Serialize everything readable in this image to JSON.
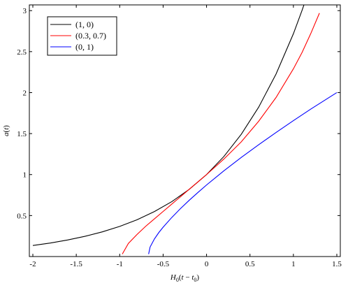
{
  "chart_data": {
    "type": "line",
    "xlabel_parts": {
      "H": "H",
      "sub0": "0",
      "open": "(",
      "t": "t",
      "minus": " − ",
      "t2": "t",
      "sub1": "0",
      "close": ")"
    },
    "ylabel_parts": {
      "a": "a",
      "open": "(",
      "t": "t",
      "close": ")"
    },
    "xlim": [
      -2,
      1.5
    ],
    "ylim": [
      0,
      3.07
    ],
    "x_ticks": [
      -2,
      -1.5,
      -1,
      -0.5,
      0,
      0.5,
      1,
      1.5
    ],
    "x_tick_labels": [
      "-2",
      "-1.5",
      "-1",
      "-0.5",
      "0",
      "0.5",
      "1",
      "1.5"
    ],
    "y_ticks": [
      0.5,
      1,
      1.5,
      2,
      2.5,
      3
    ],
    "y_tick_labels": [
      "0.5",
      "1",
      "1.5",
      "2",
      "2.5",
      "3"
    ],
    "legend_position": "top-left",
    "series": [
      {
        "name": "(1, 0)",
        "color": "#000000",
        "x": [
          -2,
          -1.8,
          -1.6,
          -1.4,
          -1.2,
          -1,
          -0.8,
          -0.6,
          -0.4,
          -0.2,
          0,
          0.2,
          0.4,
          0.6,
          0.8,
          1,
          1.1,
          1.15
        ],
        "y": [
          0.135,
          0.165,
          0.202,
          0.247,
          0.301,
          0.368,
          0.449,
          0.549,
          0.67,
          0.819,
          1,
          1.221,
          1.492,
          1.822,
          2.226,
          2.718,
          3.004,
          3.158
        ]
      },
      {
        "name": "(0.3, 0.7)",
        "color": "#ff0000",
        "x": [
          -0.97,
          -0.9,
          -0.8,
          -0.7,
          -0.6,
          -0.5,
          -0.4,
          -0.3,
          -0.2,
          -0.1,
          0,
          0.2,
          0.4,
          0.6,
          0.8,
          1,
          1.1,
          1.2,
          1.3
        ],
        "y": [
          0.03,
          0.16,
          0.27,
          0.37,
          0.46,
          0.55,
          0.64,
          0.73,
          0.82,
          0.91,
          1,
          1.19,
          1.4,
          1.65,
          1.94,
          2.29,
          2.49,
          2.72,
          2.97
        ]
      },
      {
        "name": "(0, 1)",
        "color": "#0000ff",
        "x": [
          -0.667,
          -0.65,
          -0.6,
          -0.55,
          -0.5,
          -0.4,
          -0.3,
          -0.2,
          -0.1,
          0,
          0.2,
          0.4,
          0.6,
          0.8,
          1,
          1.2,
          1.5
        ],
        "y": [
          0.03,
          0.116,
          0.215,
          0.292,
          0.358,
          0.477,
          0.585,
          0.686,
          0.781,
          0.873,
          1.046,
          1.209,
          1.364,
          1.513,
          1.658,
          1.799,
          2.0
        ]
      }
    ]
  }
}
